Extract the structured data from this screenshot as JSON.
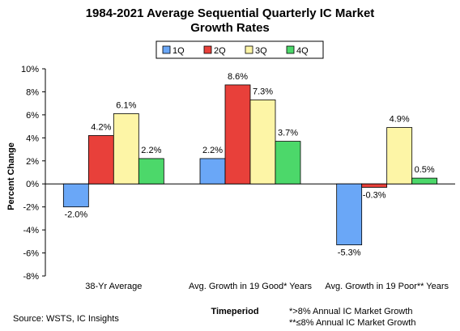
{
  "chart_data": {
    "type": "bar",
    "title_line1": "1984-2021 Average Sequential Quarterly IC Market",
    "title_line2": "Growth Rates",
    "ylabel": "Percent Change",
    "xlabel": "Timeperiod",
    "ylim": [
      -8,
      10
    ],
    "yticks": [
      -8,
      -6,
      -4,
      -2,
      0,
      2,
      4,
      6,
      8,
      10
    ],
    "ytick_labels": [
      "-8%",
      "-6%",
      "-4%",
      "-2%",
      "0%",
      "2%",
      "4%",
      "6%",
      "8%",
      "10%"
    ],
    "categories": [
      "38-Yr Average",
      "Avg. Growth in 19 Good* Years",
      "Avg. Growth in 19 Poor** Years"
    ],
    "series": [
      {
        "name": "1Q",
        "color": "#6aa7f7",
        "values": [
          -2.0,
          2.2,
          -5.3
        ],
        "labels": [
          "-2.0%",
          "2.2%",
          "-5.3%"
        ]
      },
      {
        "name": "2Q",
        "color": "#e8403a",
        "values": [
          4.2,
          8.6,
          -0.3
        ],
        "labels": [
          "4.2%",
          "8.6%",
          "-0.3%"
        ]
      },
      {
        "name": "3Q",
        "color": "#fdf5a6",
        "values": [
          6.1,
          7.3,
          4.9
        ],
        "labels": [
          "6.1%",
          "7.3%",
          "4.9%"
        ]
      },
      {
        "name": "4Q",
        "color": "#4cd86a",
        "values": [
          2.2,
          3.7,
          0.5
        ],
        "labels": [
          "2.2%",
          "3.7%",
          "0.5%"
        ]
      }
    ],
    "legend_position": "top-center",
    "grid": false
  },
  "footer": {
    "source": "Source: WSTS, IC Insights",
    "note1": "*>8% Annual IC Market Growth",
    "note2": "**≤8% Annual IC Market Growth"
  }
}
